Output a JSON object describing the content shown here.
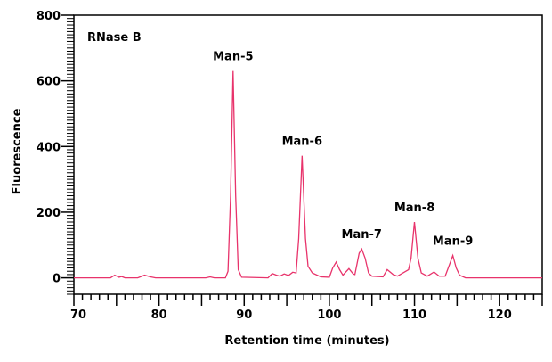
{
  "chart_data": {
    "type": "line",
    "title": "",
    "annotation_corner": "RNase B",
    "xlabel": "Retention time (minutes)",
    "ylabel": "Fluorescence",
    "xlim": [
      70,
      125
    ],
    "ylim": [
      -50,
      800
    ],
    "x_ticks": [
      70,
      80,
      90,
      100,
      110,
      120
    ],
    "y_ticks": [
      0,
      200,
      400,
      600,
      800
    ],
    "grid": false,
    "line_color": "#e8336b",
    "series": [
      {
        "points": [
          [
            70,
            0
          ],
          [
            74.3,
            0
          ],
          [
            74.8,
            8
          ],
          [
            75.3,
            2
          ],
          [
            75.6,
            4
          ],
          [
            76,
            0
          ],
          [
            77.5,
            0
          ],
          [
            78.3,
            8
          ],
          [
            79,
            3
          ],
          [
            79.6,
            0
          ],
          [
            85.5,
            0
          ],
          [
            86,
            3
          ],
          [
            86.5,
            0
          ],
          [
            87.8,
            0
          ],
          [
            88.1,
            20
          ],
          [
            88.4,
            250
          ],
          [
            88.7,
            630
          ],
          [
            89.0,
            250
          ],
          [
            89.3,
            25
          ],
          [
            89.7,
            2
          ],
          [
            92.8,
            0
          ],
          [
            93.3,
            13
          ],
          [
            93.8,
            8
          ],
          [
            94.2,
            5
          ],
          [
            94.7,
            12
          ],
          [
            95.2,
            7
          ],
          [
            95.7,
            17
          ],
          [
            96.1,
            15
          ],
          [
            96.4,
            120
          ],
          [
            96.8,
            372
          ],
          [
            97.2,
            120
          ],
          [
            97.5,
            35
          ],
          [
            98,
            15
          ],
          [
            99,
            3
          ],
          [
            100,
            2
          ],
          [
            100.4,
            30
          ],
          [
            100.8,
            48
          ],
          [
            101.2,
            25
          ],
          [
            101.6,
            8
          ],
          [
            102.3,
            28
          ],
          [
            102.8,
            12
          ],
          [
            103.0,
            10
          ],
          [
            103.5,
            75
          ],
          [
            103.8,
            88
          ],
          [
            104.2,
            60
          ],
          [
            104.6,
            15
          ],
          [
            105,
            5
          ],
          [
            106.3,
            3
          ],
          [
            106.8,
            25
          ],
          [
            107.5,
            10
          ],
          [
            108,
            5
          ],
          [
            109.3,
            25
          ],
          [
            109.6,
            60
          ],
          [
            110,
            170
          ],
          [
            110.4,
            60
          ],
          [
            110.8,
            15
          ],
          [
            111.5,
            5
          ],
          [
            112.3,
            18
          ],
          [
            112.9,
            5
          ],
          [
            113.6,
            5
          ],
          [
            114.1,
            40
          ],
          [
            114.5,
            68
          ],
          [
            114.9,
            30
          ],
          [
            115.3,
            8
          ],
          [
            116,
            0
          ],
          [
            125,
            0
          ]
        ]
      }
    ],
    "annotations": [
      {
        "text": "Man-5",
        "x": 88.7,
        "y": 630
      },
      {
        "text": "Man-6",
        "x": 96.8,
        "y": 372
      },
      {
        "text": "Man-7",
        "x": 103.8,
        "y": 88
      },
      {
        "text": "Man-8",
        "x": 110,
        "y": 170
      },
      {
        "text": "Man-9",
        "x": 114.5,
        "y": 68
      }
    ]
  }
}
